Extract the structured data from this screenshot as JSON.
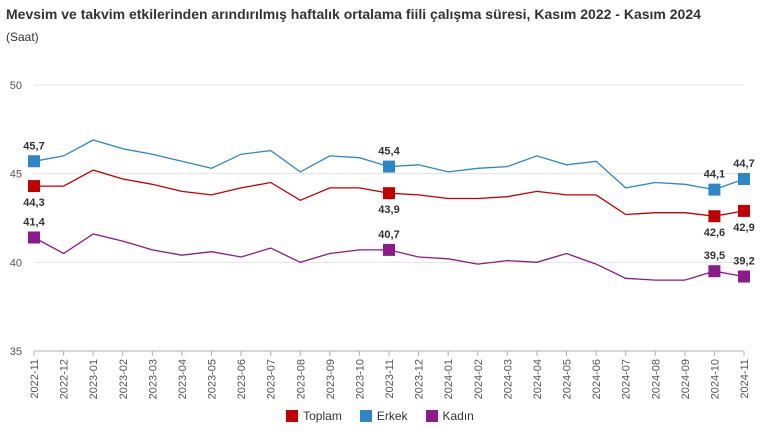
{
  "chart_data": {
    "type": "line",
    "title": "Mevsim ve takvim etkilerinden arındırılmış haftalık ortalama fiili çalışma süresi, Kasım 2022 - Kasım 2024",
    "subtitle": "(Saat)",
    "ylim": [
      35,
      50
    ],
    "yticks": [
      "35",
      "40",
      "45",
      "50"
    ],
    "grid": true,
    "legend_position": "bottom-center",
    "categories": [
      "2022-11",
      "2022-12",
      "2023-01",
      "2023-02",
      "2023-03",
      "2023-04",
      "2023-05",
      "2023-06",
      "2023-07",
      "2023-08",
      "2023-09",
      "2023-10",
      "2023-11",
      "2023-12",
      "2024-01",
      "2024-02",
      "2024-03",
      "2024-04",
      "2024-05",
      "2024-06",
      "2024-07",
      "2024-08",
      "2024-09",
      "2024-10",
      "2024-11"
    ],
    "series": [
      {
        "name": "Toplam",
        "color": "#c00000",
        "values": [
          44.3,
          44.3,
          45.2,
          44.7,
          44.4,
          44.0,
          43.8,
          44.2,
          44.5,
          43.5,
          44.2,
          44.2,
          43.9,
          43.8,
          43.6,
          43.6,
          43.7,
          44.0,
          43.8,
          43.8,
          42.7,
          42.8,
          42.8,
          42.6,
          42.9
        ],
        "markers": [
          {
            "index": 0,
            "label": "44,3",
            "pos": "below"
          },
          {
            "index": 12,
            "label": "43,9",
            "pos": "below"
          },
          {
            "index": 23,
            "label": "42,6",
            "pos": "below"
          },
          {
            "index": 24,
            "label": "42,9",
            "pos": "below"
          }
        ]
      },
      {
        "name": "Erkek",
        "color": "#2e86c8",
        "values": [
          45.7,
          46.0,
          46.9,
          46.4,
          46.1,
          45.7,
          45.3,
          46.1,
          46.3,
          45.1,
          46.0,
          45.9,
          45.4,
          45.5,
          45.1,
          45.3,
          45.4,
          46.0,
          45.5,
          45.7,
          44.2,
          44.5,
          44.4,
          44.1,
          44.7
        ],
        "markers": [
          {
            "index": 0,
            "label": "45,7",
            "pos": "above"
          },
          {
            "index": 12,
            "label": "45,4",
            "pos": "above"
          },
          {
            "index": 23,
            "label": "44,1",
            "pos": "above"
          },
          {
            "index": 24,
            "label": "44,7",
            "pos": "above"
          }
        ]
      },
      {
        "name": "Kadın",
        "color": "#8b1a8b",
        "values": [
          41.4,
          40.5,
          41.6,
          41.2,
          40.7,
          40.4,
          40.6,
          40.3,
          40.8,
          40.0,
          40.5,
          40.7,
          40.7,
          40.3,
          40.2,
          39.9,
          40.1,
          40.0,
          40.5,
          39.9,
          39.1,
          39.0,
          39.0,
          39.5,
          39.2
        ],
        "markers": [
          {
            "index": 0,
            "label": "41,4",
            "pos": "above"
          },
          {
            "index": 12,
            "label": "40,7",
            "pos": "above"
          },
          {
            "index": 23,
            "label": "39,5",
            "pos": "above"
          },
          {
            "index": 24,
            "label": "39,2",
            "pos": "above"
          }
        ]
      }
    ]
  }
}
